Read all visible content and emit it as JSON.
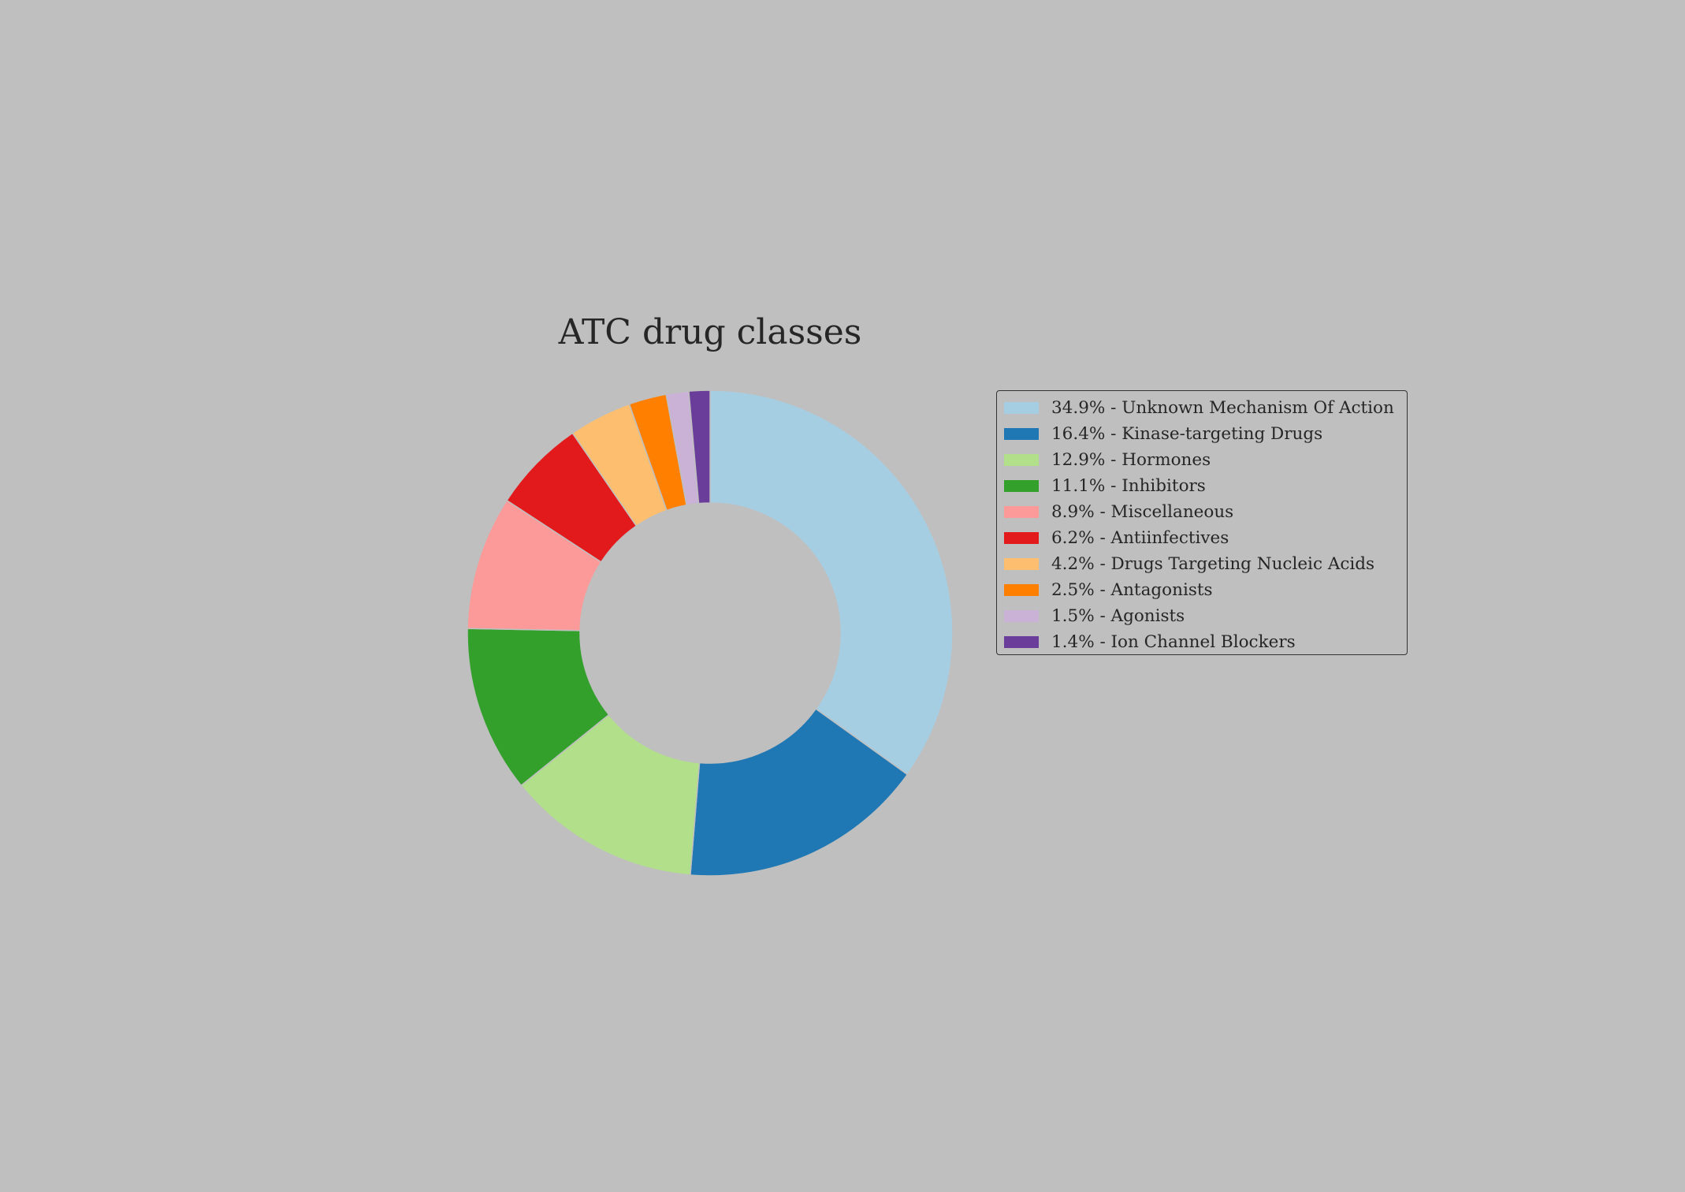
{
  "chart_data": {
    "type": "pie",
    "style": "donut",
    "title": "ATC drug classes",
    "legend_placement": "right",
    "start_angle_deg": 90,
    "direction": "clockwise",
    "slices": [
      {
        "label": "34.9% - Unknown Mechanism Of Action",
        "value": 34.9,
        "color": "#a6cee3"
      },
      {
        "label": "16.4% - Kinase-targeting Drugs",
        "value": 16.4,
        "color": "#1f78b4"
      },
      {
        "label": "12.9% - Hormones",
        "value": 12.9,
        "color": "#b2df8a"
      },
      {
        "label": "11.1% - Inhibitors",
        "value": 11.1,
        "color": "#33a02c"
      },
      {
        "label": "8.9% - Miscellaneous",
        "value": 8.9,
        "color": "#fb9a99"
      },
      {
        "label": "6.2% - Antiinfectives",
        "value": 6.2,
        "color": "#e31a1c"
      },
      {
        "label": "4.2% - Drugs Targeting Nucleic Acids",
        "value": 4.2,
        "color": "#fdbf6f"
      },
      {
        "label": "2.5% - Antagonists",
        "value": 2.5,
        "color": "#ff7f00"
      },
      {
        "label": "1.5% - Agonists",
        "value": 1.5,
        "color": "#cab2d6"
      },
      {
        "label": "1.4% - Ion Channel Blockers",
        "value": 1.4,
        "color": "#6a3d9a"
      }
    ]
  }
}
